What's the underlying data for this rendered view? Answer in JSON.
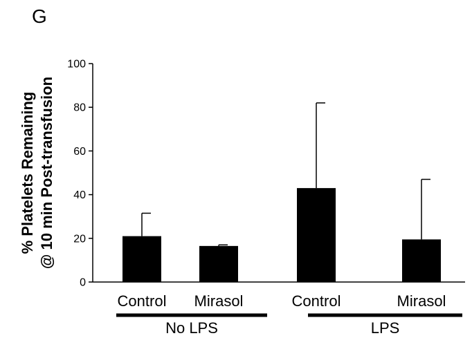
{
  "panel_label": "G",
  "chart_data": {
    "type": "bar",
    "title": "",
    "ylabel": [
      "% Platelets Remaining",
      "@ 10 min Post-transfusion"
    ],
    "xlabel": "",
    "ylim": [
      0,
      100
    ],
    "yticks": [
      0,
      20,
      40,
      60,
      80,
      100
    ],
    "categories": [
      "Control",
      "Mirasol",
      "Control",
      "Mirasol"
    ],
    "groups": [
      {
        "label": "No LPS",
        "categories": [
          0,
          1
        ]
      },
      {
        "label": "LPS",
        "categories": [
          2,
          3
        ]
      }
    ],
    "values": [
      21,
      16.5,
      43,
      19.5
    ],
    "error_upper": [
      10.5,
      0.5,
      39,
      27.5
    ],
    "bar_color": "#000000",
    "grid": false,
    "legend": "none"
  }
}
